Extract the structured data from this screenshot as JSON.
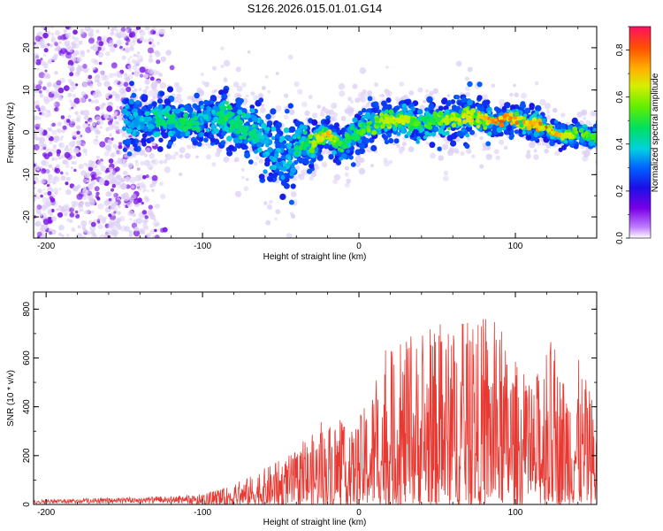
{
  "title": "S126.2026.015.01.01.G14",
  "chart_data": [
    {
      "type": "heatmap",
      "name": "spectrogram",
      "xlabel": "Height of straight line (km)",
      "ylabel": "Frequency (Hz)",
      "xlim": [
        -208,
        152
      ],
      "ylim": [
        -25,
        25
      ],
      "xticks": [
        -200,
        -100,
        0,
        100
      ],
      "xtick_labels": [
        "-200",
        "-100",
        "0",
        "100"
      ],
      "yticks": [
        -20,
        -10,
        0,
        10,
        20
      ],
      "ytick_labels": [
        "-20",
        "-10",
        "0",
        "10",
        "20"
      ],
      "colorbar": {
        "label": "Normalized spectral amplitude",
        "range": [
          0.0,
          0.9
        ],
        "ticks": [
          0.0,
          0.2,
          0.4,
          0.6,
          0.8
        ],
        "tick_labels": [
          "0.0",
          "0.2",
          "0.4",
          "0.6",
          "0.8"
        ]
      },
      "ridge": {
        "x": [
          -150,
          -130,
          -110,
          -95,
          -85,
          -75,
          -65,
          -55,
          -45,
          -38,
          -30,
          -20,
          -12,
          -5,
          0,
          10,
          20,
          30,
          40,
          50,
          60,
          70,
          80,
          90,
          100,
          110,
          120,
          130,
          140,
          150
        ],
        "y": [
          3,
          3,
          2,
          3,
          4,
          1,
          -1,
          -4,
          -6,
          -2,
          -3,
          0,
          -3,
          -1,
          0,
          2,
          3,
          3,
          2,
          3,
          3,
          4,
          3,
          3,
          3,
          2,
          1,
          -1,
          0,
          -1
        ],
        "amplitude": [
          0.35,
          0.45,
          0.5,
          0.4,
          0.5,
          0.45,
          0.45,
          0.4,
          0.35,
          0.5,
          0.6,
          0.75,
          0.55,
          0.5,
          0.55,
          0.6,
          0.65,
          0.65,
          0.55,
          0.6,
          0.65,
          0.7,
          0.75,
          0.85,
          0.8,
          0.75,
          0.85,
          0.7,
          0.6,
          0.55
        ],
        "spread": [
          3.5,
          3,
          2.5,
          3,
          4,
          4,
          4,
          5,
          5,
          3,
          2.5,
          2,
          2.5,
          2.5,
          2.5,
          2.5,
          2.5,
          2.5,
          2.5,
          2.5,
          2.5,
          3,
          2.5,
          2,
          2,
          2,
          1.5,
          1.5,
          1.5,
          1.5
        ]
      },
      "noise_region_x": [
        -208,
        -118
      ],
      "colors": {
        "low": "#ddd0f5",
        "mid": "#7a18e6"
      }
    },
    {
      "type": "line",
      "name": "snr",
      "xlabel": "Height of straight line (km)",
      "ylabel": "SNR (10 * v/v)",
      "xlim": [
        -208,
        152
      ],
      "ylim": [
        0,
        870
      ],
      "xticks": [
        -200,
        -100,
        0,
        100
      ],
      "xtick_labels": [
        "-200",
        "-100",
        "0",
        "100"
      ],
      "yticks": [
        0,
        200,
        400,
        600,
        800
      ],
      "ytick_labels": [
        "0",
        "200",
        "400",
        "600",
        "800"
      ],
      "envelope": {
        "x": [
          -208,
          -150,
          -120,
          -100,
          -80,
          -60,
          -40,
          -25,
          -15,
          -5,
          5,
          15,
          25,
          40,
          55,
          75,
          90,
          100,
          110,
          120,
          130,
          140,
          152
        ],
        "y": [
          15,
          25,
          30,
          40,
          80,
          150,
          220,
          320,
          350,
          300,
          420,
          600,
          650,
          700,
          720,
          760,
          700,
          600,
          450,
          700,
          550,
          600,
          400
        ]
      },
      "line_color": "#e83a33"
    }
  ]
}
